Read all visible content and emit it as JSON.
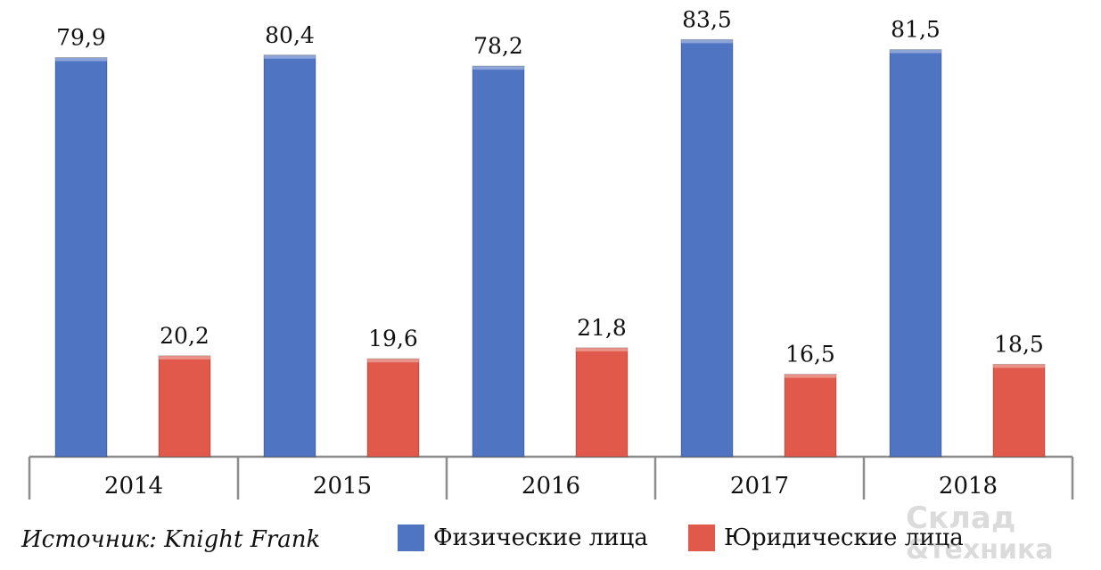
{
  "chart_data": {
    "type": "bar",
    "categories": [
      "2014",
      "2015",
      "2016",
      "2017",
      "2018"
    ],
    "series": [
      {
        "name": "Физические лица",
        "values": [
          79.9,
          80.4,
          78.2,
          83.5,
          81.5
        ],
        "labels": [
          "79,9",
          "80,4",
          "78,2",
          "83,5",
          "81,5"
        ],
        "color": "#4F74C2"
      },
      {
        "name": "Юридические лица",
        "values": [
          20.2,
          19.6,
          21.8,
          16.5,
          18.5
        ],
        "labels": [
          "20,2",
          "19,6",
          "21,8",
          "16,5",
          "18,5"
        ],
        "color": "#E0594A"
      }
    ],
    "ylim": [
      0,
      90
    ],
    "grid": false,
    "legend": "bottom"
  },
  "source": "Источник: Knight Frank",
  "watermark": "Склад & техника"
}
